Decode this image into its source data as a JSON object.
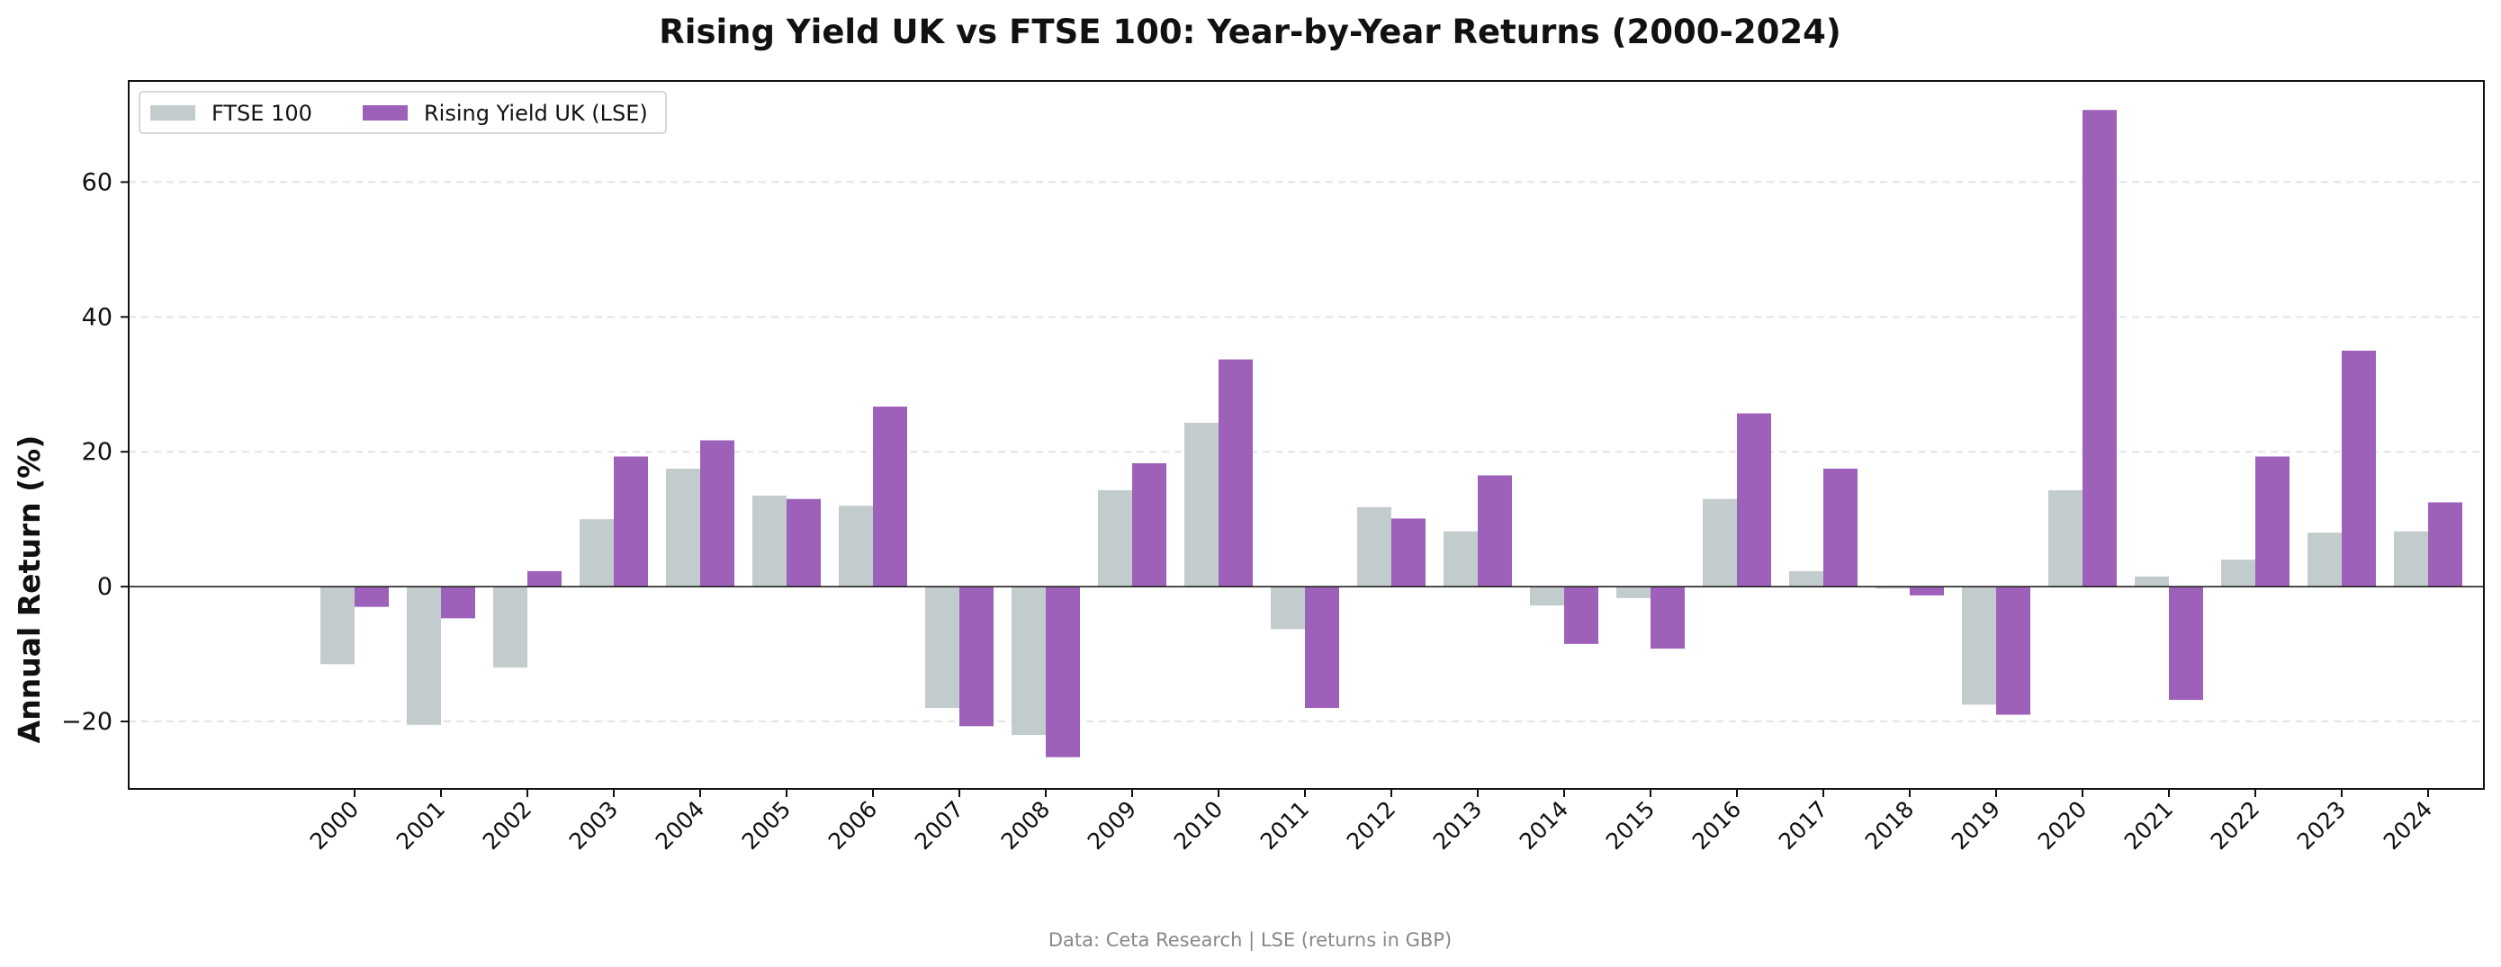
{
  "chart_data": {
    "type": "bar",
    "title": "Rising Yield UK vs FTSE 100: Year-by-Year Returns (2000-2024)",
    "xlabel": "",
    "ylabel": "Annual Return (%)",
    "ylim": [
      -30,
      75
    ],
    "yticks": [
      -20,
      0,
      20,
      40,
      60
    ],
    "ytick_labels": [
      "−20",
      "0",
      "20",
      "40",
      "60"
    ],
    "grid": "horizontal dashed",
    "legend_position": "top-left",
    "categories": [
      "2000",
      "2001",
      "2002",
      "2003",
      "2004",
      "2005",
      "2006",
      "2007",
      "2008",
      "2009",
      "2010",
      "2011",
      "2012",
      "2013",
      "2014",
      "2015",
      "2016",
      "2017",
      "2018",
      "2019",
      "2020",
      "2021",
      "2022",
      "2023",
      "2024"
    ],
    "series": [
      {
        "name": "FTSE 100",
        "color": "#c3cccc",
        "values": [
          -11.5,
          -20.5,
          -12.0,
          10.0,
          17.5,
          13.5,
          12.0,
          -18.0,
          -22.0,
          14.3,
          24.3,
          -6.3,
          11.8,
          8.2,
          -2.8,
          -1.7,
          13.0,
          2.3,
          -0.3,
          -17.5,
          14.3,
          1.5,
          4.0,
          8.0,
          8.2
        ]
      },
      {
        "name": "Rising Yield UK (LSE)",
        "color": "#9e61ba",
        "values": [
          -3.0,
          -4.7,
          2.3,
          19.3,
          21.7,
          13.0,
          26.7,
          -20.7,
          -25.3,
          18.3,
          33.7,
          -18.0,
          10.1,
          16.5,
          -8.5,
          -9.2,
          25.7,
          17.5,
          -1.3,
          -19.0,
          70.7,
          -16.8,
          19.3,
          35.0,
          12.5
        ]
      }
    ]
  },
  "footer": {
    "source": "Data: Ceta Research | LSE (returns in GBP)"
  }
}
